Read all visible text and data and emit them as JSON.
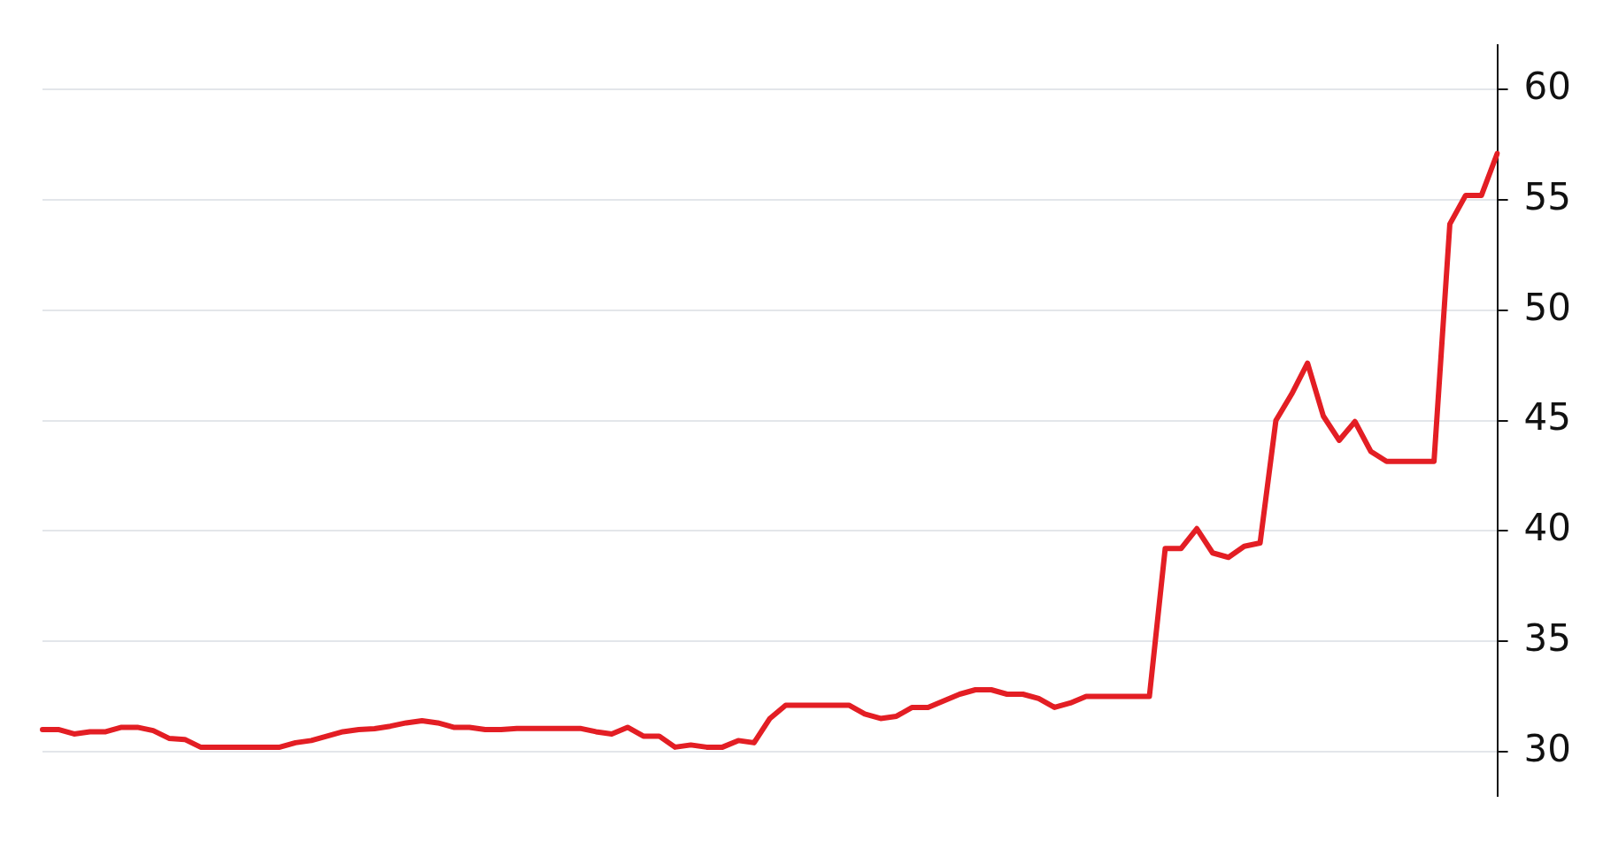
{
  "chart_data": {
    "type": "line",
    "categories": [
      null,
      null,
      null,
      null,
      null,
      null,
      null,
      null,
      null,
      null,
      null,
      null,
      null,
      null,
      null,
      null,
      null,
      null,
      null,
      null,
      null,
      null,
      null,
      null,
      null,
      null,
      null,
      null,
      null,
      null,
      null,
      null,
      null,
      null,
      null,
      null,
      null,
      null,
      null,
      null,
      null,
      null,
      null,
      null,
      null,
      null,
      null,
      null,
      null,
      null,
      null,
      null,
      null,
      null,
      null,
      null,
      null,
      null,
      null,
      null,
      null,
      null,
      null,
      null,
      null,
      null,
      null,
      null,
      null,
      null,
      null,
      null,
      null,
      null,
      null,
      null,
      null,
      null,
      null,
      null,
      null,
      null,
      null,
      null,
      null,
      null,
      null,
      null,
      null,
      null,
      null,
      null,
      null
    ],
    "series": [
      {
        "color": "#e31e24",
        "values": [
          31.0,
          31.0,
          30.8,
          30.9,
          30.9,
          31.1,
          31.1,
          30.95,
          30.6,
          30.55,
          30.2,
          30.2,
          30.2,
          30.2,
          30.2,
          30.2,
          30.4,
          30.5,
          30.7,
          30.9,
          31.0,
          31.04,
          31.15,
          31.3,
          31.4,
          31.3,
          31.1,
          31.1,
          31.0,
          31.0,
          31.05,
          31.05,
          31.05,
          31.05,
          31.05,
          30.9,
          30.8,
          31.1,
          30.7,
          30.7,
          30.2,
          30.3,
          30.2,
          30.2,
          30.5,
          30.4,
          31.5,
          32.1,
          32.1,
          32.1,
          32.1,
          32.1,
          31.7,
          31.5,
          31.6,
          32.0,
          32.0,
          32.3,
          32.6,
          32.8,
          32.8,
          32.6,
          32.6,
          32.4,
          32.0,
          32.2,
          32.5,
          32.5,
          32.5,
          32.5,
          32.5,
          39.2,
          39.2,
          40.1,
          39.0,
          38.8,
          39.3,
          39.45,
          45.0,
          46.2,
          47.6,
          45.2,
          44.1,
          44.95,
          43.6,
          43.15,
          43.15,
          43.15,
          43.15,
          53.9,
          55.2,
          55.2,
          57.1
        ]
      }
    ],
    "ylim": [
      28,
      62
    ],
    "yticks": [
      30,
      35,
      40,
      45,
      50,
      55,
      60
    ],
    "grid": "y",
    "tick_labels": "y",
    "marker": "none",
    "line_style": "solid",
    "legend": false
  }
}
